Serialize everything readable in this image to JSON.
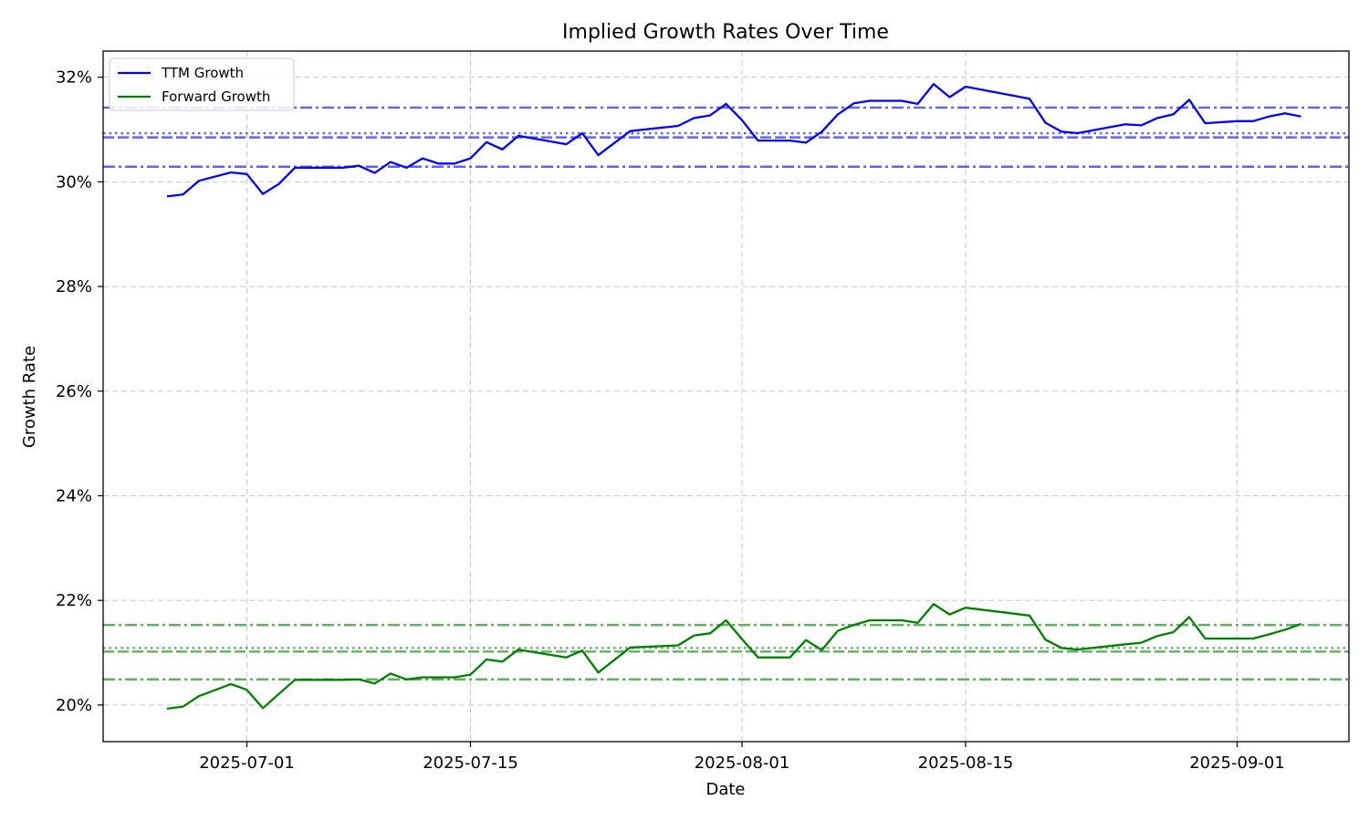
{
  "chart_data": {
    "type": "line",
    "title": "Implied Growth Rates Over Time",
    "xlabel": "Date",
    "ylabel": "Growth Rate",
    "ylim": [
      19.3,
      32.5
    ],
    "xlim": [
      "2025-06-22",
      "2025-09-08"
    ],
    "grid": true,
    "legend_position": "top-left",
    "x_ticks": [
      "2025-07-01",
      "2025-07-15",
      "2025-08-01",
      "2025-08-15",
      "2025-09-01"
    ],
    "y_ticks": [
      20,
      22,
      24,
      26,
      28,
      30,
      32
    ],
    "y_tick_suffix": "%",
    "series": [
      {
        "name": "TTM Growth",
        "color": "#0000ff",
        "points": [
          [
            "2025-06-26",
            29.72
          ],
          [
            "2025-06-27",
            29.76
          ],
          [
            "2025-06-28",
            30.02
          ],
          [
            "2025-06-30",
            30.18
          ],
          [
            "2025-07-01",
            30.15
          ],
          [
            "2025-07-02",
            29.77
          ],
          [
            "2025-07-03",
            29.96
          ],
          [
            "2025-07-04",
            30.27
          ],
          [
            "2025-07-07",
            30.27
          ],
          [
            "2025-07-08",
            30.31
          ],
          [
            "2025-07-09",
            30.17
          ],
          [
            "2025-07-10",
            30.38
          ],
          [
            "2025-07-11",
            30.27
          ],
          [
            "2025-07-12",
            30.45
          ],
          [
            "2025-07-13",
            30.35
          ],
          [
            "2025-07-14",
            30.35
          ],
          [
            "2025-07-15",
            30.45
          ],
          [
            "2025-07-16",
            30.76
          ],
          [
            "2025-07-17",
            30.62
          ],
          [
            "2025-07-18",
            30.88
          ],
          [
            "2025-07-21",
            30.72
          ],
          [
            "2025-07-22",
            30.93
          ],
          [
            "2025-07-23",
            30.51
          ],
          [
            "2025-07-25",
            30.97
          ],
          [
            "2025-07-28",
            31.07
          ],
          [
            "2025-07-29",
            31.22
          ],
          [
            "2025-07-30",
            31.27
          ],
          [
            "2025-07-31",
            31.49
          ],
          [
            "2025-08-01",
            31.18
          ],
          [
            "2025-08-02",
            30.79
          ],
          [
            "2025-08-04",
            30.79
          ],
          [
            "2025-08-05",
            30.75
          ],
          [
            "2025-08-06",
            30.96
          ],
          [
            "2025-08-07",
            31.29
          ],
          [
            "2025-08-08",
            31.5
          ],
          [
            "2025-08-09",
            31.55
          ],
          [
            "2025-08-11",
            31.55
          ],
          [
            "2025-08-12",
            31.49
          ],
          [
            "2025-08-13",
            31.87
          ],
          [
            "2025-08-14",
            31.62
          ],
          [
            "2025-08-15",
            31.82
          ],
          [
            "2025-08-19",
            31.59
          ],
          [
            "2025-08-20",
            31.13
          ],
          [
            "2025-08-21",
            30.96
          ],
          [
            "2025-08-22",
            30.93
          ],
          [
            "2025-08-25",
            31.1
          ],
          [
            "2025-08-26",
            31.08
          ],
          [
            "2025-08-27",
            31.22
          ],
          [
            "2025-08-28",
            31.29
          ],
          [
            "2025-08-29",
            31.57
          ],
          [
            "2025-08-30",
            31.12
          ],
          [
            "2025-09-01",
            31.16
          ],
          [
            "2025-09-02",
            31.16
          ],
          [
            "2025-09-03",
            31.25
          ],
          [
            "2025-09-04",
            31.31
          ],
          [
            "2025-09-05",
            31.25
          ]
        ],
        "reference_lines": [
          {
            "value": 31.42,
            "style": "dashdot"
          },
          {
            "value": 30.93,
            "style": "dotted"
          },
          {
            "value": 30.85,
            "style": "dashed"
          },
          {
            "value": 30.29,
            "style": "dashdot"
          }
        ]
      },
      {
        "name": "Forward Growth",
        "color": "#008000",
        "points": [
          [
            "2025-06-26",
            19.93
          ],
          [
            "2025-06-27",
            19.97
          ],
          [
            "2025-06-28",
            20.17
          ],
          [
            "2025-06-30",
            20.4
          ],
          [
            "2025-07-01",
            20.29
          ],
          [
            "2025-07-02",
            19.94
          ],
          [
            "2025-07-03",
            20.21
          ],
          [
            "2025-07-04",
            20.48
          ],
          [
            "2025-07-07",
            20.48
          ],
          [
            "2025-07-08",
            20.49
          ],
          [
            "2025-07-09",
            20.41
          ],
          [
            "2025-07-10",
            20.6
          ],
          [
            "2025-07-11",
            20.49
          ],
          [
            "2025-07-12",
            20.53
          ],
          [
            "2025-07-14",
            20.53
          ],
          [
            "2025-07-15",
            20.58
          ],
          [
            "2025-07-16",
            20.87
          ],
          [
            "2025-07-17",
            20.83
          ],
          [
            "2025-07-18",
            21.06
          ],
          [
            "2025-07-21",
            20.91
          ],
          [
            "2025-07-22",
            21.04
          ],
          [
            "2025-07-23",
            20.62
          ],
          [
            "2025-07-25",
            21.1
          ],
          [
            "2025-07-28",
            21.14
          ],
          [
            "2025-07-29",
            21.33
          ],
          [
            "2025-07-30",
            21.37
          ],
          [
            "2025-07-31",
            21.62
          ],
          [
            "2025-08-01",
            21.26
          ],
          [
            "2025-08-02",
            20.91
          ],
          [
            "2025-08-04",
            20.91
          ],
          [
            "2025-08-05",
            21.24
          ],
          [
            "2025-08-06",
            21.05
          ],
          [
            "2025-08-07",
            21.42
          ],
          [
            "2025-08-08",
            21.53
          ],
          [
            "2025-08-09",
            21.62
          ],
          [
            "2025-08-11",
            21.62
          ],
          [
            "2025-08-12",
            21.57
          ],
          [
            "2025-08-13",
            21.93
          ],
          [
            "2025-08-14",
            21.73
          ],
          [
            "2025-08-15",
            21.86
          ],
          [
            "2025-08-19",
            21.71
          ],
          [
            "2025-08-20",
            21.25
          ],
          [
            "2025-08-21",
            21.09
          ],
          [
            "2025-08-22",
            21.06
          ],
          [
            "2025-08-25",
            21.16
          ],
          [
            "2025-08-26",
            21.19
          ],
          [
            "2025-08-27",
            21.32
          ],
          [
            "2025-08-28",
            21.39
          ],
          [
            "2025-08-29",
            21.68
          ],
          [
            "2025-08-30",
            21.27
          ],
          [
            "2025-09-01",
            21.27
          ],
          [
            "2025-09-02",
            21.27
          ],
          [
            "2025-09-03",
            21.35
          ],
          [
            "2025-09-04",
            21.44
          ],
          [
            "2025-09-05",
            21.55
          ]
        ],
        "reference_lines": [
          {
            "value": 21.53,
            "style": "dashdot"
          },
          {
            "value": 21.09,
            "style": "dotted"
          },
          {
            "value": 21.02,
            "style": "dashed"
          },
          {
            "value": 20.49,
            "style": "dashdot"
          }
        ]
      }
    ]
  }
}
